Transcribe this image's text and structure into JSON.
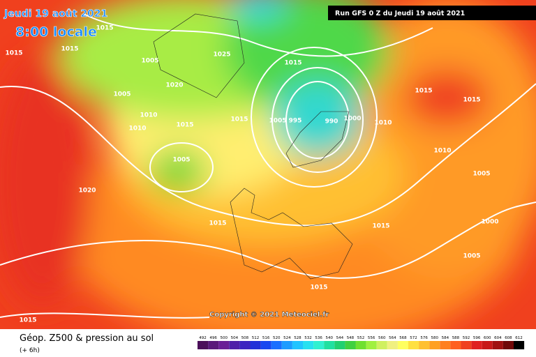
{
  "header": {
    "date": "Jeudi 19 août 2021",
    "time": "8:00 locale",
    "run": "Run GFS 0 Z du Jeudi 19 août 2021"
  },
  "copyright": "Copyright © 2021 Meteociel.fr",
  "footer": {
    "title": "Géop. Z500 & pression au sol",
    "subtitle": "(+ 6h)"
  },
  "isobar_labels": [
    1015,
    1015,
    1015,
    1005,
    1025,
    1005,
    1020,
    1010,
    1010,
    1015,
    1015,
    1005,
    995,
    990,
    1000,
    1010,
    1015,
    1015,
    1015,
    1010,
    1005,
    1005,
    1020,
    1015,
    1015,
    1000,
    1005,
    1015,
    1015
  ],
  "scale": {
    "values": [
      492,
      496,
      500,
      504,
      508,
      512,
      516,
      520,
      524,
      528,
      532,
      536,
      540,
      544,
      548,
      552,
      556,
      560,
      564,
      568,
      572,
      576,
      580,
      584,
      588,
      592,
      596,
      600,
      604,
      608,
      612
    ],
    "colors": [
      "#4b0f5a",
      "#5a1a7a",
      "#6a1f96",
      "#5020a8",
      "#3c24c0",
      "#2030d8",
      "#1848f0",
      "#1a70ff",
      "#1e9cff",
      "#22c4ff",
      "#28e0f0",
      "#30f0d0",
      "#20e0a0",
      "#20d070",
      "#40d040",
      "#70e030",
      "#a0f040",
      "#d0f060",
      "#f0f080",
      "#ffff60",
      "#ffe040",
      "#ffc030",
      "#ffa020",
      "#ff8020",
      "#ff6020",
      "#f04020",
      "#e02020",
      "#c81818",
      "#a01010",
      "#700808",
      "#000000"
    ]
  }
}
